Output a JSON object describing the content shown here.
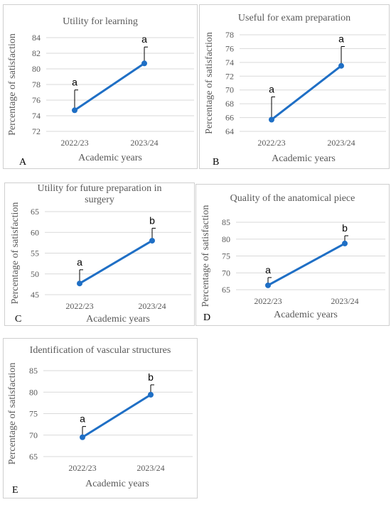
{
  "chart_data": [
    {
      "type": "line",
      "panel_letter": "A",
      "title": "Utility for learning",
      "xlabel": "Academic years",
      "ylabel": "Percentage of satisfaction",
      "categories": [
        "2022/23",
        "2023/24"
      ],
      "values": [
        74.7,
        80.7
      ],
      "error_upper": [
        77.3,
        82.8
      ],
      "significance": [
        "a",
        "a"
      ],
      "ylim": [
        72,
        84
      ],
      "yticks": [
        72,
        74,
        76,
        78,
        80,
        82,
        84
      ],
      "grid": true,
      "line_color": "#1f6fc5"
    },
    {
      "type": "line",
      "panel_letter": "B",
      "title": "Useful for exam preparation",
      "xlabel": "Academic years",
      "ylabel": "Percentage of satisfaction",
      "categories": [
        "2022/23",
        "2023/24"
      ],
      "values": [
        65.7,
        73.5
      ],
      "error_upper": [
        69.0,
        76.3
      ],
      "significance": [
        "a",
        "a"
      ],
      "ylim": [
        64,
        78
      ],
      "yticks": [
        64,
        66,
        68,
        70,
        72,
        74,
        76,
        78
      ],
      "grid": true,
      "line_color": "#1f6fc5"
    },
    {
      "type": "line",
      "panel_letter": "C",
      "title": "Utility for future preparation in\nsurgery",
      "xlabel": "Academic years",
      "ylabel": "Percentage of satisfaction",
      "categories": [
        "2022/23",
        "2023/24"
      ],
      "values": [
        47.7,
        58.0
      ],
      "error_upper": [
        51.0,
        61.0
      ],
      "significance": [
        "a",
        "b"
      ],
      "ylim": [
        45,
        65
      ],
      "yticks": [
        45,
        50,
        55,
        60,
        65
      ],
      "grid": true,
      "line_color": "#1f6fc5"
    },
    {
      "type": "line",
      "panel_letter": "D",
      "title": "Quality of the anatomical piece",
      "xlabel": "Academic years",
      "ylabel": "Percentage of satisfaction",
      "categories": [
        "2022/23",
        "2023/24"
      ],
      "values": [
        66.3,
        78.7
      ],
      "error_upper": [
        68.6,
        81.0
      ],
      "significance": [
        "a",
        "b"
      ],
      "ylim": [
        65,
        85
      ],
      "yticks": [
        65,
        70,
        75,
        80,
        85
      ],
      "grid": true,
      "line_color": "#1f6fc5"
    },
    {
      "type": "line",
      "panel_letter": "E",
      "title": "Identification of vascular structures",
      "xlabel": "Academic years",
      "ylabel": "Percentage of satisfaction",
      "categories": [
        "2022/23",
        "2023/24"
      ],
      "values": [
        69.5,
        79.4
      ],
      "error_upper": [
        72.0,
        81.7
      ],
      "significance": [
        "a",
        "b"
      ],
      "ylim": [
        65,
        85
      ],
      "yticks": [
        65,
        70,
        75,
        80,
        85
      ],
      "grid": true,
      "line_color": "#1f6fc5"
    }
  ]
}
